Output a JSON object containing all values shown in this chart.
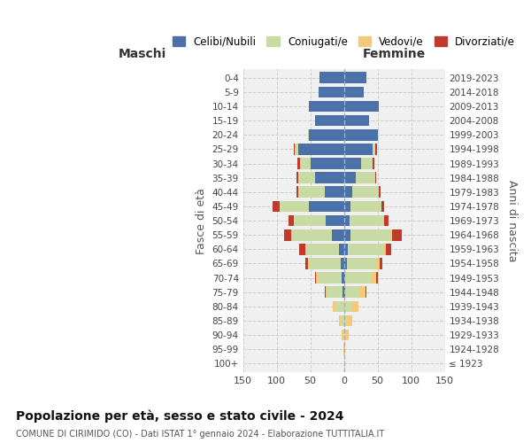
{
  "age_groups": [
    "100+",
    "95-99",
    "90-94",
    "85-89",
    "80-84",
    "75-79",
    "70-74",
    "65-69",
    "60-64",
    "55-59",
    "50-54",
    "45-49",
    "40-44",
    "35-39",
    "30-34",
    "25-29",
    "20-24",
    "15-19",
    "10-14",
    "5-9",
    "0-4"
  ],
  "birth_years": [
    "≤ 1923",
    "1924-1928",
    "1929-1933",
    "1934-1938",
    "1939-1943",
    "1944-1948",
    "1949-1953",
    "1954-1958",
    "1959-1963",
    "1964-1968",
    "1969-1973",
    "1974-1978",
    "1979-1983",
    "1984-1988",
    "1989-1993",
    "1994-1998",
    "1999-2003",
    "2004-2008",
    "2009-2013",
    "2014-2018",
    "2019-2023"
  ],
  "males": {
    "celibi": [
      0,
      0,
      0,
      0,
      0,
      2,
      3,
      5,
      8,
      18,
      27,
      52,
      28,
      43,
      50,
      68,
      52,
      43,
      52,
      38,
      36
    ],
    "coniugati": [
      0,
      0,
      2,
      5,
      12,
      22,
      36,
      47,
      48,
      60,
      48,
      44,
      40,
      25,
      15,
      5,
      2,
      0,
      0,
      0,
      0
    ],
    "vedovi": [
      0,
      1,
      1,
      3,
      4,
      3,
      2,
      2,
      2,
      1,
      0,
      0,
      0,
      0,
      0,
      0,
      0,
      0,
      0,
      0,
      0
    ],
    "divorziati": [
      0,
      0,
      0,
      0,
      0,
      2,
      2,
      3,
      8,
      10,
      8,
      10,
      2,
      2,
      4,
      2,
      0,
      0,
      0,
      0,
      0
    ]
  },
  "females": {
    "nubili": [
      0,
      0,
      0,
      0,
      0,
      2,
      2,
      4,
      6,
      10,
      8,
      10,
      12,
      18,
      25,
      42,
      50,
      38,
      52,
      30,
      34
    ],
    "coniugate": [
      0,
      0,
      2,
      4,
      12,
      20,
      38,
      44,
      52,
      60,
      50,
      46,
      40,
      28,
      18,
      5,
      2,
      0,
      0,
      0,
      0
    ],
    "vedove": [
      1,
      2,
      5,
      8,
      10,
      10,
      8,
      5,
      4,
      2,
      2,
      0,
      0,
      0,
      0,
      0,
      0,
      0,
      0,
      0,
      0
    ],
    "divorziate": [
      0,
      0,
      0,
      0,
      0,
      2,
      2,
      4,
      8,
      14,
      6,
      4,
      2,
      2,
      2,
      2,
      0,
      0,
      0,
      0,
      0
    ]
  },
  "colors": {
    "celibi": "#4a72a8",
    "coniugati": "#c8dba5",
    "vedovi": "#f5c97a",
    "divorziati": "#c0392b"
  },
  "title": "Popolazione per età, sesso e stato civile - 2024",
  "subtitle": "COMUNE DI CIRIMIDO (CO) - Dati ISTAT 1° gennaio 2024 - Elaborazione TUTTITALIA.IT",
  "xlabel_left": "Maschi",
  "xlabel_right": "Femmine",
  "ylabel_left": "Fasce di età",
  "ylabel_right": "Anni di nascita",
  "xlim": 150,
  "legend_labels": [
    "Celibi/Nubili",
    "Coniugati/e",
    "Vedovi/e",
    "Divorziati/e"
  ],
  "bg_color": "#f0f0f0"
}
